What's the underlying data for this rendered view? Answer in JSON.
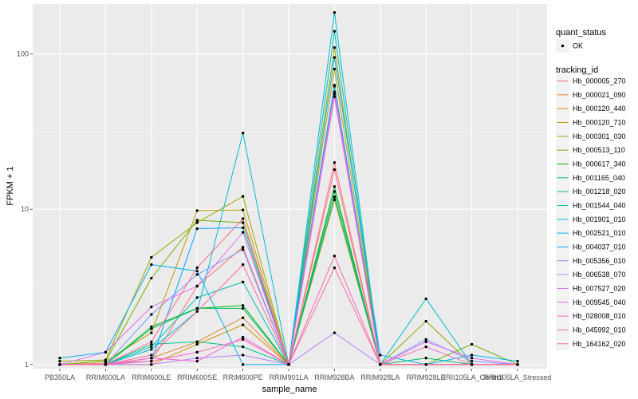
{
  "chart_data": {
    "type": "line",
    "xlabel": "sample_name",
    "ylabel": "FPKM + 1",
    "y_scale": "log10",
    "ylim": [
      0.94,
      210
    ],
    "y_ticks": [
      1,
      10,
      100
    ],
    "grid": true,
    "legend_position": "right",
    "categories": [
      "PB350LA",
      "RRIM600LA",
      "RRIM600LE",
      "RRIM600SE",
      "RRIM600PE",
      "RRIM901LA",
      "RRIM928BA",
      "RRIM928LA",
      "RRIM928LE",
      "RRII105LA_Control",
      "RRII105LA_Stressed"
    ],
    "point_legend": {
      "title": "quant_status",
      "items": [
        {
          "label": "OK"
        }
      ]
    },
    "line_legend_title": "tracking_id",
    "series": [
      {
        "name": "Hb_000005_270",
        "color": "#F8766D",
        "values": [
          1.0,
          1.02,
          1.05,
          3.2,
          5.7,
          1.0,
          20,
          1.0,
          1.0,
          1.0,
          1.0
        ]
      },
      {
        "name": "Hb_000021_090",
        "color": "#E9842C",
        "values": [
          1.0,
          1.0,
          1.1,
          1.4,
          2.0,
          1.0,
          12,
          1.0,
          1.0,
          1.0,
          1.0
        ]
      },
      {
        "name": "Hb_000120_440",
        "color": "#D69100",
        "values": [
          1.0,
          1.0,
          1.0,
          1.35,
          1.8,
          1.0,
          11.5,
          1.0,
          1.0,
          1.0,
          1.0
        ]
      },
      {
        "name": "Hb_000120_710",
        "color": "#BC9D00",
        "values": [
          1.0,
          1.05,
          1.6,
          9.8,
          9.9,
          1.0,
          80,
          1.0,
          1.0,
          1.0,
          1.0
        ]
      },
      {
        "name": "Hb_000301_030",
        "color": "#9CA700",
        "values": [
          1.05,
          1.07,
          4.9,
          8.2,
          12.1,
          1.0,
          110,
          1.0,
          1.9,
          1.0,
          1.0
        ]
      },
      {
        "name": "Hb_000513_110",
        "color": "#6FB000",
        "values": [
          1.0,
          1.05,
          3.6,
          8.5,
          8.2,
          1.0,
          62,
          1.0,
          1.0,
          1.35,
          1.0
        ]
      },
      {
        "name": "Hb_000617_340",
        "color": "#00B813",
        "values": [
          1.0,
          1.0,
          1.75,
          2.3,
          2.4,
          1.0,
          14,
          1.0,
          1.0,
          1.0,
          1.0
        ]
      },
      {
        "name": "Hb_001165_040",
        "color": "#00BD61",
        "values": [
          1.0,
          1.0,
          1.7,
          2.3,
          2.3,
          1.0,
          13,
          1.0,
          1.1,
          1.0,
          1.0
        ]
      },
      {
        "name": "Hb_001218_020",
        "color": "#00C08E",
        "values": [
          1.0,
          1.0,
          1.35,
          1.4,
          1.3,
          1.0,
          12,
          1.0,
          1.0,
          1.0,
          1.0
        ]
      },
      {
        "name": "Hb_001544_040",
        "color": "#00C0B4",
        "values": [
          1.0,
          1.0,
          1.3,
          2.7,
          3.4,
          1.0,
          140,
          1.0,
          1.0,
          1.0,
          1.0
        ]
      },
      {
        "name": "Hb_001901_010",
        "color": "#00BDD4",
        "values": [
          1.0,
          1.0,
          1.25,
          2.2,
          31.0,
          1.0,
          185,
          1.0,
          2.65,
          1.0,
          1.0
        ]
      },
      {
        "name": "Hb_002521_010",
        "color": "#00B5EE",
        "values": [
          1.1,
          1.2,
          4.4,
          4.0,
          1.0,
          1.0,
          95,
          1.15,
          1.0,
          1.15,
          1.05
        ]
      },
      {
        "name": "Hb_004037_010",
        "color": "#00A7FF",
        "values": [
          1.0,
          1.0,
          1.05,
          7.5,
          7.6,
          1.0,
          63,
          1.0,
          1.0,
          1.0,
          1.0
        ]
      },
      {
        "name": "Hb_005356_010",
        "color": "#7F96FF",
        "values": [
          1.0,
          1.0,
          2.1,
          3.8,
          5.5,
          1.0,
          55,
          1.0,
          1.45,
          1.05,
          1.0
        ]
      },
      {
        "name": "Hb_006538_070",
        "color": "#BC81FF",
        "values": [
          1.0,
          1.0,
          1.0,
          1.1,
          1.15,
          1.0,
          1.6,
          1.0,
          1.0,
          1.0,
          1.0
        ]
      },
      {
        "name": "Hb_007527_020",
        "color": "#E26EF7",
        "values": [
          1.0,
          1.2,
          2.35,
          3.2,
          7.1,
          1.0,
          57,
          1.0,
          1.4,
          1.1,
          1.0
        ]
      },
      {
        "name": "Hb_009545_040",
        "color": "#F863DF",
        "values": [
          1.0,
          1.0,
          1.1,
          1.05,
          1.5,
          1.0,
          53,
          1.0,
          1.0,
          1.0,
          1.0
        ]
      },
      {
        "name": "Hb_028008_010",
        "color": "#FF62BF",
        "values": [
          1.0,
          1.0,
          1.05,
          1.2,
          1.45,
          1.0,
          5.0,
          1.0,
          1.3,
          1.0,
          1.0
        ]
      },
      {
        "name": "Hb_045992_010",
        "color": "#FF6A9A",
        "values": [
          1.0,
          1.0,
          1.15,
          2.2,
          4.4,
          1.0,
          4.2,
          1.0,
          1.0,
          1.0,
          1.0
        ]
      },
      {
        "name": "Hb_164162_020",
        "color": "#FF6C91",
        "values": [
          1.0,
          1.0,
          1.4,
          4.2,
          8.7,
          1.0,
          18,
          1.0,
          1.0,
          1.0,
          1.0
        ]
      }
    ]
  }
}
